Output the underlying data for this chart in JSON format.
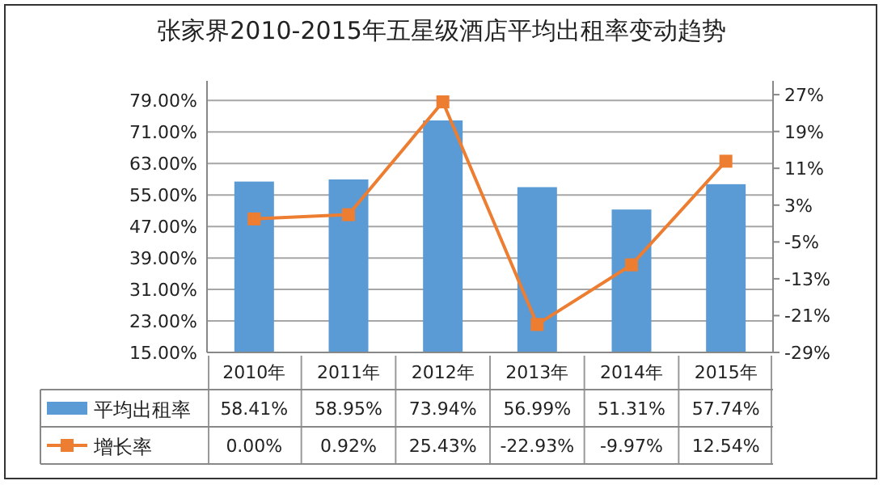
{
  "chart_data": {
    "type": "bar",
    "title": "张家界2010-2015年五星级酒店平均出租率变动趋势",
    "categories": [
      "2010年",
      "2011年",
      "2012年",
      "2013年",
      "2014年",
      "2015年"
    ],
    "series": [
      {
        "name": "平均出租率",
        "color": "#5b9bd5",
        "values": [
          58.41,
          58.95,
          73.94,
          56.99,
          51.31,
          57.74
        ],
        "value_labels": [
          "58.41%",
          "58.95%",
          "73.94%",
          "56.99%",
          "51.31%",
          "57.74%"
        ]
      },
      {
        "name": "增长率",
        "type": "line",
        "axis": "y2",
        "color": "#ed7d31",
        "values": [
          0.0,
          0.92,
          25.43,
          -22.93,
          -9.97,
          12.54
        ],
        "value_labels": [
          "0.00%",
          "0.92%",
          "25.43%",
          "-22.93%",
          "-9.97%",
          "12.54%"
        ]
      }
    ],
    "ylim": [
      15,
      84
    ],
    "yticks": [
      {
        "value": 15,
        "label": "15.00%"
      },
      {
        "value": 23,
        "label": "23.00%"
      },
      {
        "value": 31,
        "label": "31.00%"
      },
      {
        "value": 39,
        "label": "39.00%"
      },
      {
        "value": 47,
        "label": "47.00%"
      },
      {
        "value": 55,
        "label": "55.00%"
      },
      {
        "value": 63,
        "label": "63.00%"
      },
      {
        "value": 71,
        "label": "71.00%"
      },
      {
        "value": 79,
        "label": "79.00%"
      }
    ],
    "y2lim": [
      -29,
      30
    ],
    "y2ticks": [
      {
        "value": -29,
        "label": "-29%"
      },
      {
        "value": -21,
        "label": "-21%"
      },
      {
        "value": -13,
        "label": "-13%"
      },
      {
        "value": -5,
        "label": "-5%"
      },
      {
        "value": 3,
        "label": "3%"
      },
      {
        "value": 11,
        "label": "11%"
      },
      {
        "value": 19,
        "label": "19%"
      },
      {
        "value": 27,
        "label": "27%"
      }
    ],
    "grid": "y",
    "legend": "bottom",
    "marker": "square"
  }
}
